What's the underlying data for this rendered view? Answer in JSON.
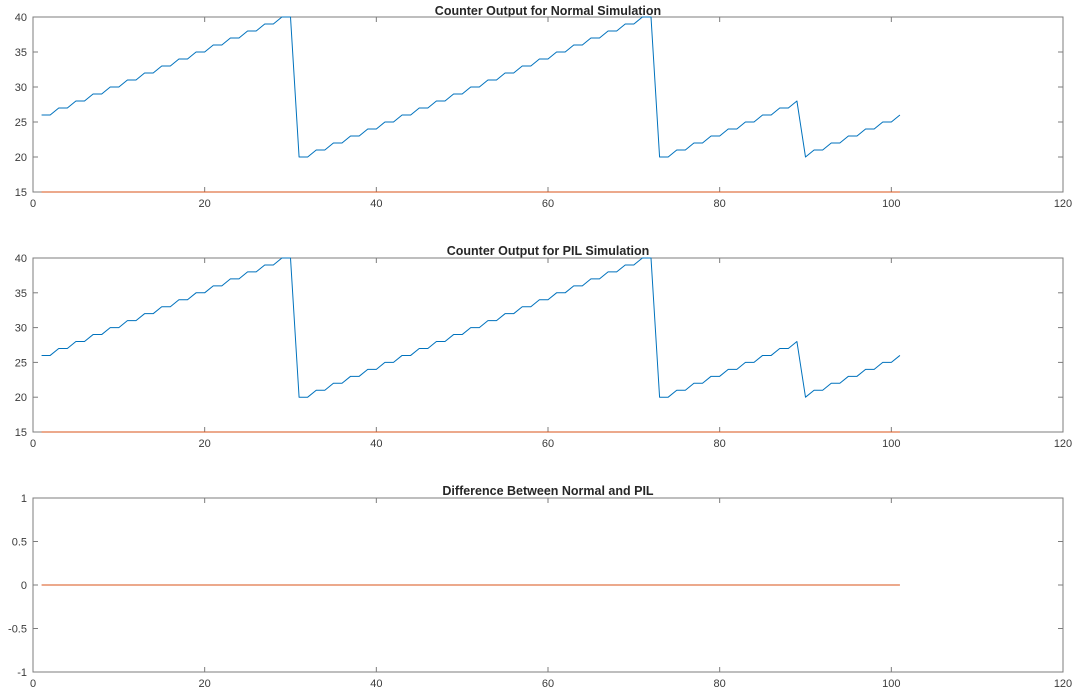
{
  "figure": {
    "background": "#ffffff",
    "axis_color": "#7c7c7c",
    "label_color": "#3b3b3b",
    "title_color": "#262626",
    "accent_blue": "#0072BD",
    "accent_orange": "#D95319"
  },
  "chart_data": [
    {
      "type": "line",
      "title": "Counter Output for Normal Simulation",
      "xlabel": "",
      "ylabel": "",
      "xlim": [
        0,
        120
      ],
      "ylim": [
        15,
        40
      ],
      "xticks": [
        0,
        20,
        40,
        60,
        80,
        100,
        120
      ],
      "yticks": [
        15,
        20,
        25,
        30,
        35,
        40
      ],
      "grid": false,
      "legend": "none",
      "series": [
        {
          "name": "counter-output",
          "color": "#0072BD",
          "x_start": 1,
          "y": [
            26,
            26,
            27,
            27,
            28,
            28,
            29,
            29,
            30,
            30,
            31,
            31,
            32,
            32,
            33,
            33,
            34,
            34,
            35,
            35,
            36,
            36,
            37,
            37,
            38,
            38,
            39,
            39,
            40,
            40,
            20,
            20,
            21,
            21,
            22,
            22,
            23,
            23,
            24,
            24,
            25,
            25,
            26,
            26,
            27,
            27,
            28,
            28,
            29,
            29,
            30,
            30,
            31,
            31,
            32,
            32,
            33,
            33,
            34,
            34,
            35,
            35,
            36,
            36,
            37,
            37,
            38,
            38,
            39,
            39,
            40,
            40,
            20,
            20,
            21,
            21,
            22,
            22,
            23,
            23,
            24,
            24,
            25,
            25,
            26,
            26,
            27,
            27,
            28,
            20,
            21,
            21,
            22,
            22,
            23,
            23,
            24,
            24,
            25,
            25,
            26
          ]
        },
        {
          "name": "reference-line",
          "color": "#D95319",
          "x": [
            1,
            101
          ],
          "y": [
            15,
            15
          ]
        }
      ]
    },
    {
      "type": "line",
      "title": "Counter Output for PIL Simulation",
      "xlabel": "",
      "ylabel": "",
      "xlim": [
        0,
        120
      ],
      "ylim": [
        15,
        40
      ],
      "xticks": [
        0,
        20,
        40,
        60,
        80,
        100,
        120
      ],
      "yticks": [
        15,
        20,
        25,
        30,
        35,
        40
      ],
      "grid": false,
      "legend": "none",
      "series": [
        {
          "name": "counter-output",
          "color": "#0072BD",
          "x_start": 1,
          "y": [
            26,
            26,
            27,
            27,
            28,
            28,
            29,
            29,
            30,
            30,
            31,
            31,
            32,
            32,
            33,
            33,
            34,
            34,
            35,
            35,
            36,
            36,
            37,
            37,
            38,
            38,
            39,
            39,
            40,
            40,
            20,
            20,
            21,
            21,
            22,
            22,
            23,
            23,
            24,
            24,
            25,
            25,
            26,
            26,
            27,
            27,
            28,
            28,
            29,
            29,
            30,
            30,
            31,
            31,
            32,
            32,
            33,
            33,
            34,
            34,
            35,
            35,
            36,
            36,
            37,
            37,
            38,
            38,
            39,
            39,
            40,
            40,
            20,
            20,
            21,
            21,
            22,
            22,
            23,
            23,
            24,
            24,
            25,
            25,
            26,
            26,
            27,
            27,
            28,
            20,
            21,
            21,
            22,
            22,
            23,
            23,
            24,
            24,
            25,
            25,
            26
          ]
        },
        {
          "name": "reference-line",
          "color": "#D95319",
          "x": [
            1,
            101
          ],
          "y": [
            15,
            15
          ]
        }
      ]
    },
    {
      "type": "line",
      "title": "Difference Between Normal and PIL",
      "xlabel": "",
      "ylabel": "",
      "xlim": [
        0,
        120
      ],
      "ylim": [
        -1,
        1
      ],
      "xticks": [
        0,
        20,
        40,
        60,
        80,
        100,
        120
      ],
      "yticks": [
        -1,
        -0.5,
        0,
        0.5,
        1
      ],
      "grid": false,
      "legend": "none",
      "series": [
        {
          "name": "difference",
          "color": "#D95319",
          "x": [
            1,
            101
          ],
          "y": [
            0,
            0
          ]
        }
      ]
    }
  ]
}
